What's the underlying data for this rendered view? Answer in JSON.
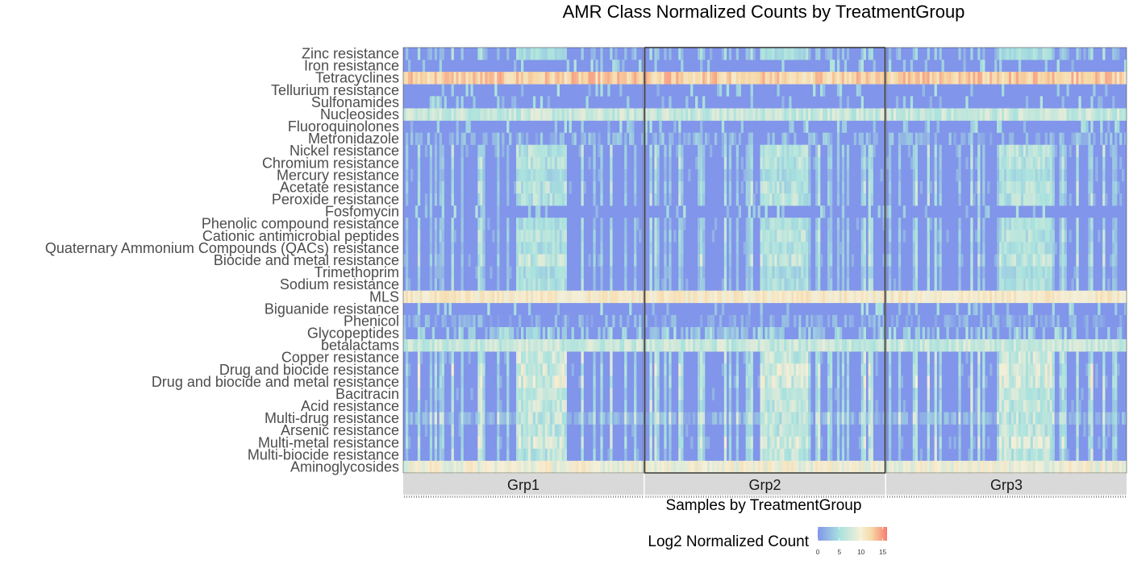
{
  "chart_data": {
    "type": "heatmap",
    "title": "AMR Class Normalized Counts by TreatmentGroup",
    "xlabel": "Samples by TreatmentGroup",
    "legend_title": "Log2 Normalized Count",
    "color_scale": {
      "min": 0,
      "max": 16,
      "ticks": [
        0,
        5,
        10,
        15
      ],
      "colors": [
        "#8195ea",
        "#a9e2de",
        "#f6efd7",
        "#f6d8a6",
        "#f87b6e"
      ]
    },
    "groups": [
      "Grp1",
      "Grp2",
      "Grp3"
    ],
    "samples_per_group": 100,
    "rows": [
      {
        "label": "Zinc resistance",
        "base": 0.8,
        "var": 2.5,
        "pattern": "mixed"
      },
      {
        "label": "Iron resistance",
        "base": 0.3,
        "var": 1.0,
        "pattern": "sparse"
      },
      {
        "label": "Tetracyclines",
        "base": 12.5,
        "var": 2.0,
        "pattern": "high"
      },
      {
        "label": "Tellurium resistance",
        "base": 0.2,
        "var": 1.5,
        "pattern": "sparse"
      },
      {
        "label": "Sulfonamides",
        "base": 0.2,
        "var": 1.2,
        "pattern": "sparse"
      },
      {
        "label": "Nucleosides",
        "base": 7.0,
        "var": 2.0,
        "pattern": "mid"
      },
      {
        "label": "Fluoroquinolones",
        "base": 0.3,
        "var": 0.8,
        "pattern": "sparse"
      },
      {
        "label": "Metronidazole",
        "base": 1.2,
        "var": 1.5,
        "pattern": "noisy"
      },
      {
        "label": "Nickel resistance",
        "base": 1.0,
        "var": 4.0,
        "pattern": "mixed"
      },
      {
        "label": "Chromium resistance",
        "base": 1.0,
        "var": 4.0,
        "pattern": "mixed"
      },
      {
        "label": "Mercury resistance",
        "base": 0.6,
        "var": 2.5,
        "pattern": "mixed"
      },
      {
        "label": "Acetate resistance",
        "base": 1.0,
        "var": 4.0,
        "pattern": "mixed"
      },
      {
        "label": "Peroxide resistance",
        "base": 1.0,
        "var": 4.0,
        "pattern": "mixed"
      },
      {
        "label": "Fosfomycin",
        "base": 0.3,
        "var": 1.0,
        "pattern": "sparse"
      },
      {
        "label": "Phenolic compound resistance",
        "base": 0.8,
        "var": 3.0,
        "pattern": "mixed"
      },
      {
        "label": "Cationic antimicrobial peptides",
        "base": 1.0,
        "var": 4.0,
        "pattern": "mixed"
      },
      {
        "label": "Quaternary Ammonium Compounds (QACs) resistance",
        "base": 0.8,
        "var": 3.0,
        "pattern": "mixed"
      },
      {
        "label": "Biocide and metal resistance",
        "base": 1.2,
        "var": 4.5,
        "pattern": "mixed"
      },
      {
        "label": "Trimethoprim",
        "base": 0.5,
        "var": 2.5,
        "pattern": "mixed"
      },
      {
        "label": "Sodium resistance",
        "base": 0.8,
        "var": 3.0,
        "pattern": "mixed"
      },
      {
        "label": "MLS",
        "base": 10.5,
        "var": 1.5,
        "pattern": "high"
      },
      {
        "label": "Biguanide resistance",
        "base": 0.2,
        "var": 0.8,
        "pattern": "sparse"
      },
      {
        "label": "Phenicol",
        "base": 0.5,
        "var": 1.5,
        "pattern": "noisy"
      },
      {
        "label": "Glycopeptides",
        "base": 2.0,
        "var": 2.0,
        "pattern": "noisy"
      },
      {
        "label": "betalactams",
        "base": 7.0,
        "var": 2.0,
        "pattern": "mid"
      },
      {
        "label": "Copper resistance",
        "base": 1.5,
        "var": 5.0,
        "pattern": "mixed"
      },
      {
        "label": "Drug and biocide resistance",
        "base": 1.8,
        "var": 6.0,
        "pattern": "mixed"
      },
      {
        "label": "Drug and biocide and metal resistance",
        "base": 1.8,
        "var": 6.0,
        "pattern": "mixed"
      },
      {
        "label": "Bacitracin",
        "base": 1.5,
        "var": 4.0,
        "pattern": "mixed"
      },
      {
        "label": "Acid resistance",
        "base": 1.5,
        "var": 4.5,
        "pattern": "mixed"
      },
      {
        "label": "Multi-drug resistance",
        "base": 3.5,
        "var": 4.0,
        "pattern": "mixedhigh"
      },
      {
        "label": "Arsenic resistance",
        "base": 1.2,
        "var": 4.5,
        "pattern": "mixed"
      },
      {
        "label": "Multi-metal resistance",
        "base": 1.5,
        "var": 6.0,
        "pattern": "mixed"
      },
      {
        "label": "Multi-biocide resistance",
        "base": 1.2,
        "var": 4.5,
        "pattern": "mixed"
      },
      {
        "label": "Aminoglycosides",
        "base": 9.5,
        "var": 2.0,
        "pattern": "high"
      }
    ]
  }
}
